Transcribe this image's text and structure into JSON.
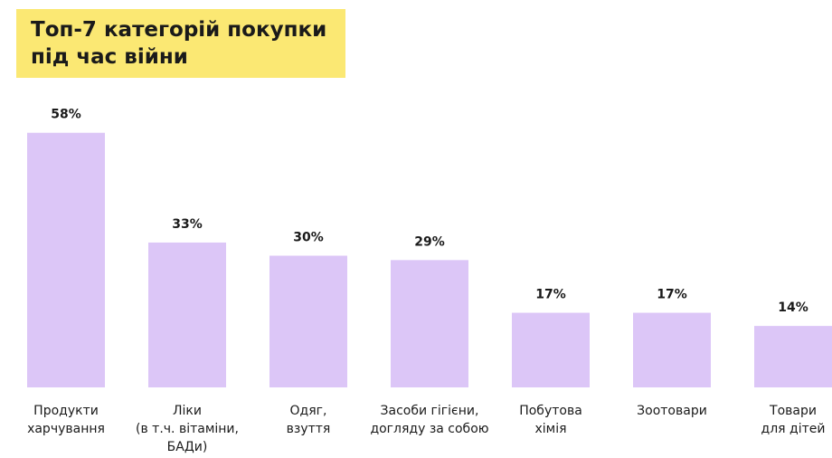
{
  "chart_data": {
    "type": "bar",
    "title": "Топ-7 категорій покупки\nпід час війни",
    "categories": [
      "Продукти\nхарчування",
      "Ліки\n(в т.ч. вітаміни,\nБАДи)",
      "Одяг,\nвзуття",
      "Засоби гігієни,\nдогляду за собою",
      "Побутова\nхімія",
      "Зоотовари",
      "Товари\nдля дітей"
    ],
    "values": [
      58,
      33,
      30,
      29,
      17,
      17,
      14
    ],
    "value_labels": [
      "58%",
      "33%",
      "30%",
      "29%",
      "17%",
      "17%",
      "14%"
    ],
    "color": "#dcc6f7"
  }
}
